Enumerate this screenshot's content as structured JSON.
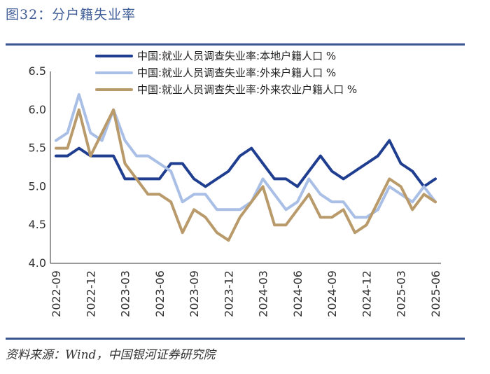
{
  "header": {
    "title": "图32：分户籍失业率"
  },
  "footer": {
    "source": "资料来源：Wind，中国银河证券研究院"
  },
  "chart_data": {
    "type": "line",
    "title": "图32：分户籍失业率",
    "xlabel": "",
    "ylabel": "",
    "ylim": [
      4.0,
      6.5
    ],
    "yticks": [
      "4.0",
      "4.5",
      "5.0",
      "5.5",
      "6.0",
      "6.5"
    ],
    "grid": false,
    "legend_position": "top",
    "x": [
      "2022-09",
      "2022-10",
      "2022-11",
      "2022-12",
      "2023-01",
      "2023-02",
      "2023-03",
      "2023-04",
      "2023-05",
      "2023-06",
      "2023-07",
      "2023-08",
      "2023-09",
      "2023-10",
      "2023-11",
      "2023-12",
      "2024-01",
      "2024-02",
      "2024-03",
      "2024-04",
      "2024-05",
      "2024-06",
      "2024-07",
      "2024-08",
      "2024-09",
      "2024-10",
      "2024-11",
      "2024-12",
      "2025-01",
      "2025-02",
      "2025-03",
      "2025-04",
      "2025-05",
      "2025-06"
    ],
    "xtick_labels": [
      "2022-09",
      "2022-12",
      "2023-03",
      "2023-06",
      "2023-09",
      "2023-12",
      "2024-03",
      "2024-06",
      "2024-09",
      "2024-12",
      "2025-03",
      "2025-06"
    ],
    "series": [
      {
        "name": "中国:就业人员调查失业率:本地户籍人口 %",
        "color": "#1f3e8f",
        "values": [
          5.4,
          5.4,
          5.5,
          5.4,
          5.4,
          5.4,
          5.1,
          5.1,
          5.1,
          5.1,
          5.3,
          5.3,
          5.1,
          5.0,
          5.1,
          5.2,
          5.4,
          5.5,
          5.3,
          5.1,
          5.1,
          5.0,
          5.2,
          5.4,
          5.2,
          5.1,
          5.2,
          5.3,
          5.4,
          5.6,
          5.3,
          5.2,
          5.0,
          5.1
        ]
      },
      {
        "name": "中国:就业人员调查失业率:外来户籍人口 %",
        "color": "#a9bfe6",
        "values": [
          5.6,
          5.7,
          6.2,
          5.7,
          5.6,
          6.0,
          5.6,
          5.4,
          5.4,
          5.3,
          5.2,
          4.8,
          4.9,
          4.9,
          4.7,
          4.7,
          4.7,
          4.8,
          5.1,
          4.9,
          4.7,
          4.8,
          5.1,
          4.9,
          4.8,
          4.8,
          4.6,
          4.6,
          4.7,
          5.0,
          4.9,
          4.8,
          5.0,
          4.8
        ]
      },
      {
        "name": "中国:就业人员调查失业率:外来农业户籍人口 %",
        "color": "#b99a6b",
        "values": [
          5.5,
          5.5,
          6.0,
          5.4,
          5.7,
          6.0,
          5.3,
          5.1,
          4.9,
          4.9,
          4.8,
          4.4,
          4.7,
          4.6,
          4.4,
          4.3,
          4.6,
          4.8,
          5.0,
          4.5,
          4.5,
          4.7,
          4.9,
          4.6,
          4.6,
          4.7,
          4.4,
          4.5,
          4.8,
          5.1,
          5.0,
          4.7,
          4.9,
          4.8
        ]
      }
    ]
  }
}
